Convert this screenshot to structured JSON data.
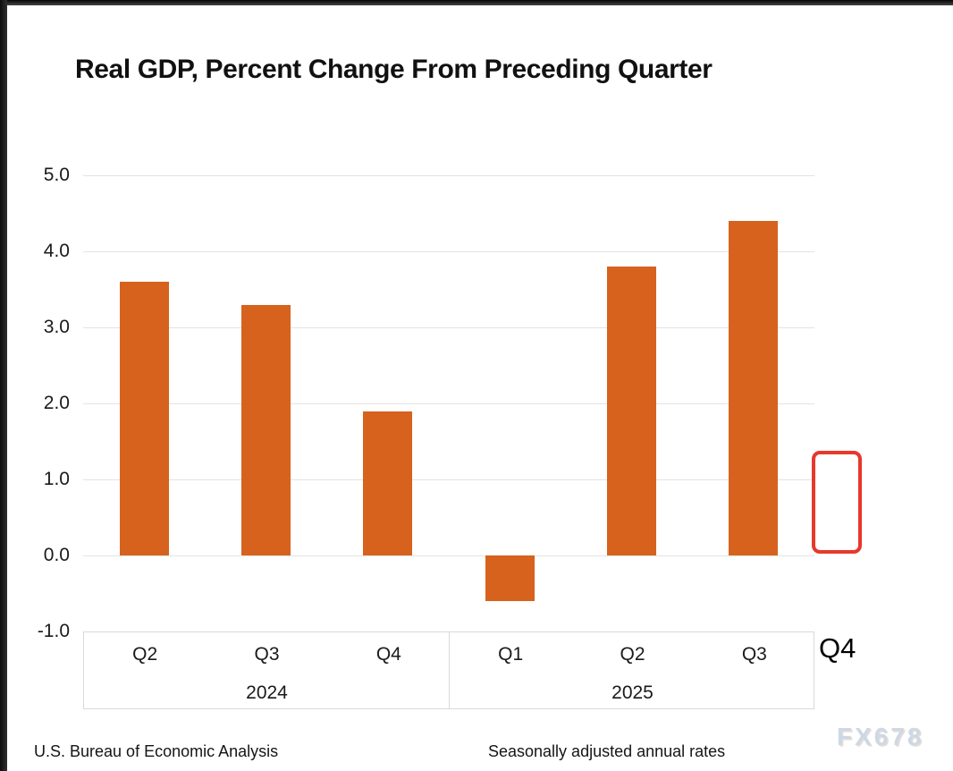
{
  "title": "Real GDP, Percent Change From Preceding Quarter",
  "annotation": {
    "pending_quarter_label": "Q4"
  },
  "footer": {
    "source": "U.S. Bureau of Economic Analysis",
    "note": "Seasonally adjusted annual rates",
    "watermark": "FX678"
  },
  "colors": {
    "bar": "#d6621e",
    "annotation_box": "#e6392b",
    "gridline": "#e3e3e3",
    "axis_box_border": "#d9d9d9",
    "watermark": "#ccd8e6"
  },
  "chart_data": {
    "type": "bar",
    "title": "Real GDP, Percent Change From Preceding Quarter",
    "categories": [
      "Q2 2024",
      "Q3 2024",
      "Q4 2024",
      "Q1 2025",
      "Q2 2025",
      "Q3 2025"
    ],
    "values": [
      3.6,
      3.3,
      1.9,
      -0.6,
      3.8,
      4.4
    ],
    "x_groups": [
      {
        "year": "2024",
        "quarters": [
          "Q2",
          "Q3",
          "Q4"
        ]
      },
      {
        "year": "2025",
        "quarters": [
          "Q1",
          "Q2",
          "Q3"
        ]
      }
    ],
    "pending_category": "Q4 2025",
    "y_ticks": [
      "5.0",
      "4.0",
      "3.0",
      "2.0",
      "1.0",
      "0.0",
      "-1.0"
    ],
    "ylim": [
      -1.0,
      5.0
    ],
    "xlabel": "",
    "ylabel": "",
    "grid": "horizontal",
    "bar_color": "#d6621e",
    "legend": "none",
    "source_note": "U.S. Bureau of Economic Analysis",
    "adjustment_note": "Seasonally adjusted annual rates"
  }
}
